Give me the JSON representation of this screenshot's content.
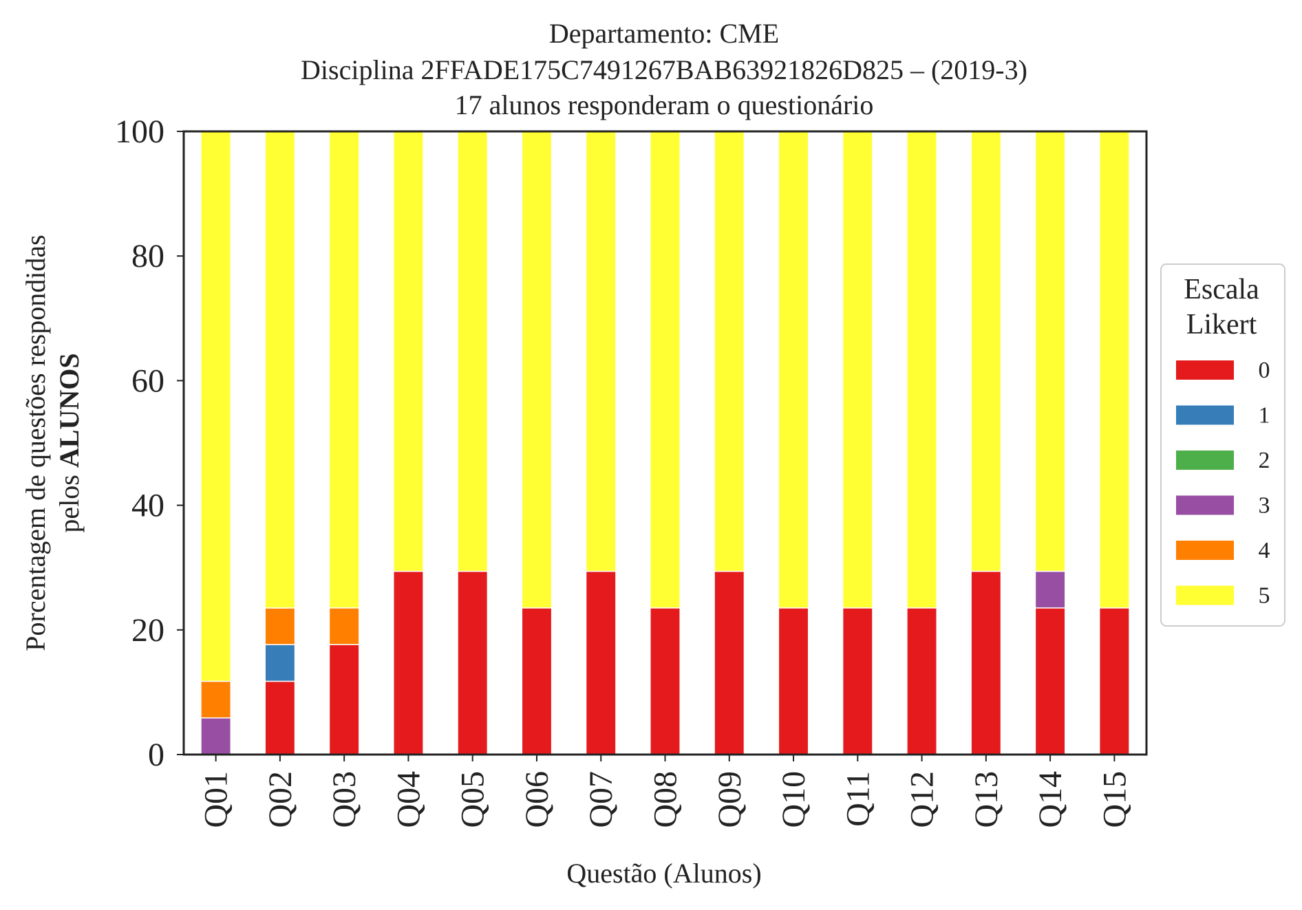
{
  "chart_data": {
    "type": "bar",
    "stacked": true,
    "title_lines": [
      "Departamento: CME",
      "Disciplina 2FFADE175C7491267BAB63921826D825 – (2019-3)",
      "17 alunos responderam o questionário"
    ],
    "xlabel": "Questão (Alunos)",
    "ylabel_line1": "Porcentagem de questões respondidas",
    "ylabel_line2_prefix": "pelos ",
    "ylabel_line2_bold": "ALUNOS",
    "ylim": [
      0,
      100
    ],
    "yticks": [
      "0",
      "20",
      "40",
      "60",
      "80",
      "100"
    ],
    "categories": [
      "Q01",
      "Q02",
      "Q03",
      "Q04",
      "Q05",
      "Q06",
      "Q07",
      "Q08",
      "Q09",
      "Q10",
      "Q11",
      "Q12",
      "Q13",
      "Q14",
      "Q15"
    ],
    "legend": {
      "title_lines": [
        "Escala",
        "Likert"
      ],
      "placement": "right"
    },
    "grid": false,
    "series": [
      {
        "name": "0",
        "color": "#e41a1c",
        "values": [
          0,
          11.76,
          17.65,
          29.41,
          29.41,
          23.53,
          29.41,
          23.53,
          29.41,
          23.53,
          23.53,
          23.53,
          29.41,
          23.53,
          23.53
        ]
      },
      {
        "name": "1",
        "color": "#377eb8",
        "values": [
          0,
          5.88,
          0,
          0,
          0,
          0,
          0,
          0,
          0,
          0,
          0,
          0,
          0,
          0,
          0
        ]
      },
      {
        "name": "2",
        "color": "#4daf4a",
        "values": [
          0,
          0,
          0,
          0,
          0,
          0,
          0,
          0,
          0,
          0,
          0,
          0,
          0,
          0,
          0
        ]
      },
      {
        "name": "3",
        "color": "#984ea3",
        "values": [
          5.88,
          0,
          0,
          0,
          0,
          0,
          0,
          0,
          0,
          0,
          0,
          0,
          0,
          5.88,
          0
        ]
      },
      {
        "name": "4",
        "color": "#ff7f00",
        "values": [
          5.88,
          5.88,
          5.88,
          0,
          0,
          0,
          0,
          0,
          0,
          0,
          0,
          0,
          0,
          0,
          0
        ]
      },
      {
        "name": "5",
        "color": "#ffff33",
        "values": [
          88.24,
          76.47,
          76.47,
          70.59,
          70.59,
          76.47,
          70.59,
          76.47,
          70.59,
          76.47,
          76.47,
          76.47,
          70.59,
          70.59,
          76.47
        ]
      }
    ]
  }
}
